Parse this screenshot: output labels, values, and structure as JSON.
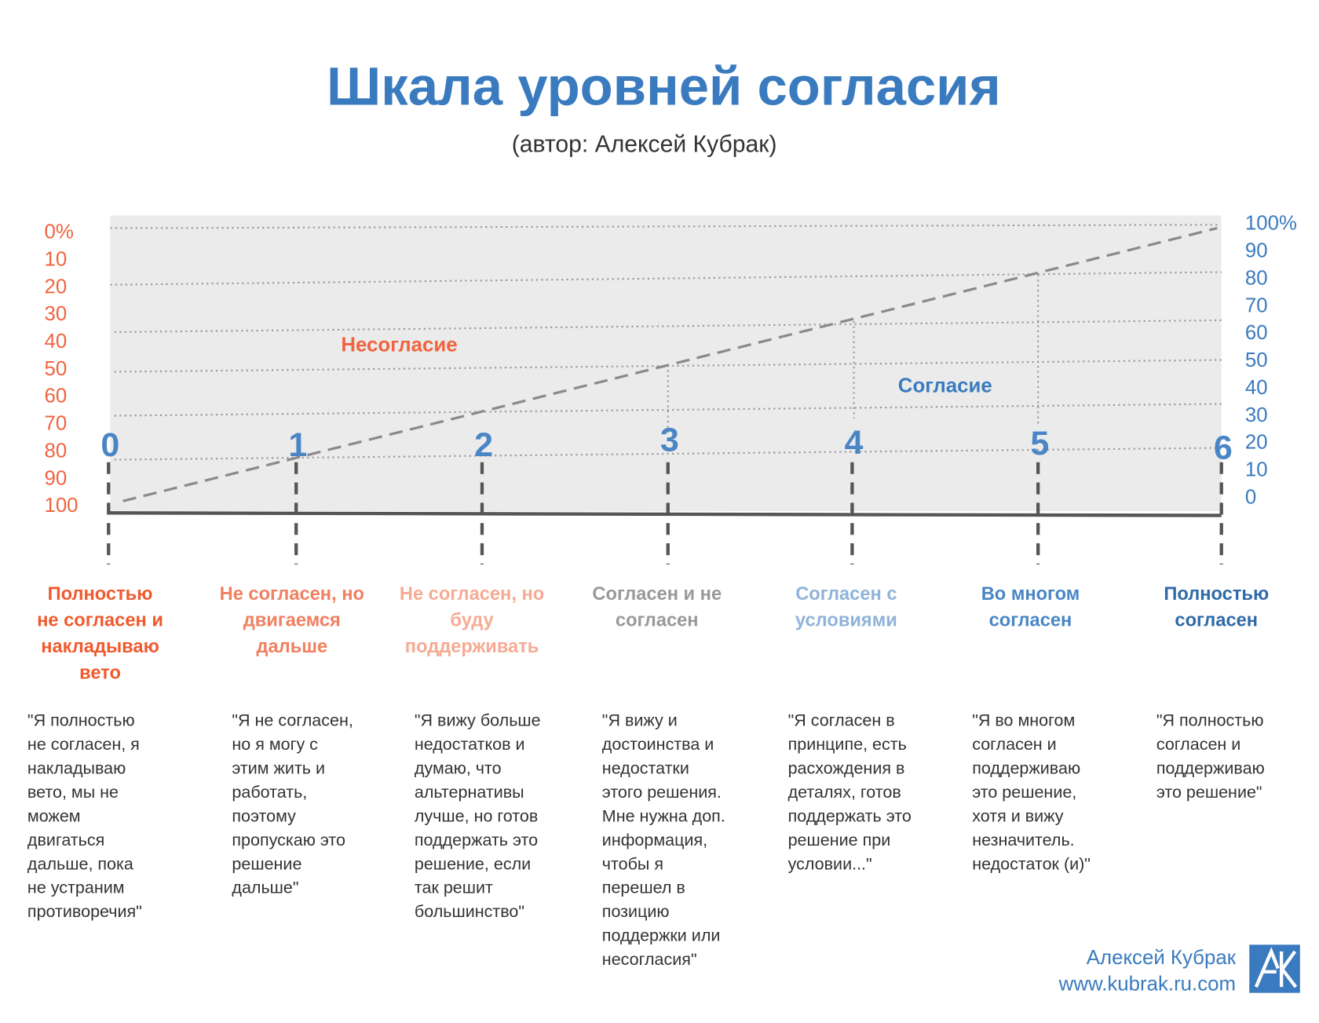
{
  "header": {
    "title": "Шкала уровней согласия",
    "subtitle": "(автор: Алексей Кубрак)"
  },
  "left_axis": [
    "0%",
    "10",
    "20",
    "30",
    "40",
    "50",
    "60",
    "70",
    "80",
    "90",
    "100"
  ],
  "right_axis": [
    "100%",
    "90",
    "80",
    "70",
    "60",
    "50",
    "40",
    "30",
    "20",
    "10",
    "0"
  ],
  "regions": {
    "disagreement": "Несогласие",
    "agreement": "Согласие"
  },
  "levels": [
    {
      "number": "0",
      "label": [
        "Полностью",
        "не согласен и",
        "накладываю",
        "вето"
      ],
      "quote": [
        "\"Я полностью",
        "не согласен, я",
        "накладываю",
        "вето, мы не",
        "можем",
        "двигаться",
        "дальше, пока",
        "не устраним",
        "противоречия\""
      ]
    },
    {
      "number": "1",
      "label": [
        "Не согласен, но",
        "двигаемся",
        "дальше"
      ],
      "quote": [
        "\"Я не согласен,",
        "но я могу с",
        "этим жить и",
        "работать,",
        "поэтому",
        "пропускаю это",
        "решение",
        "дальше\""
      ]
    },
    {
      "number": "2",
      "label": [
        "Не согласен, но",
        "буду",
        "поддерживать"
      ],
      "quote": [
        "\"Я вижу больше",
        "недостатков и",
        "думаю, что",
        "альтернативы",
        "лучше, но готов",
        "поддержать это",
        "решение, если",
        "так решит",
        "большинство\""
      ]
    },
    {
      "number": "3",
      "label": [
        "Согласен и не",
        "согласен"
      ],
      "quote": [
        "\"Я вижу и",
        "достоинства и",
        "недостатки",
        "этого решения.",
        "Мне нужна доп.",
        "информация,",
        "чтобы я",
        "перешел в",
        "позицию",
        "поддержки или",
        "несогласия\""
      ]
    },
    {
      "number": "4",
      "label": [
        "Согласен с",
        "условиями"
      ],
      "quote": [
        "\"Я согласен в",
        "принципе, есть",
        "расхождения в",
        "деталях, готов",
        "поддержать это",
        "решение при",
        "условии...\""
      ]
    },
    {
      "number": "5",
      "label": [
        "Во многом",
        "согласен"
      ],
      "quote": [
        "\"Я во многом",
        "согласен и",
        "поддерживаю",
        "это решение,",
        "хотя и вижу",
        "незначитель.",
        "недостаток (и)\""
      ]
    },
    {
      "number": "6",
      "label": [
        "Полностью",
        "согласен"
      ],
      "quote": [
        "\"Я полностью",
        "согласен и",
        "поддерживаю",
        "это решение\""
      ]
    }
  ],
  "footer": {
    "author": "Алексей Кубрак",
    "url": "www.kubrak.ru.com"
  }
}
